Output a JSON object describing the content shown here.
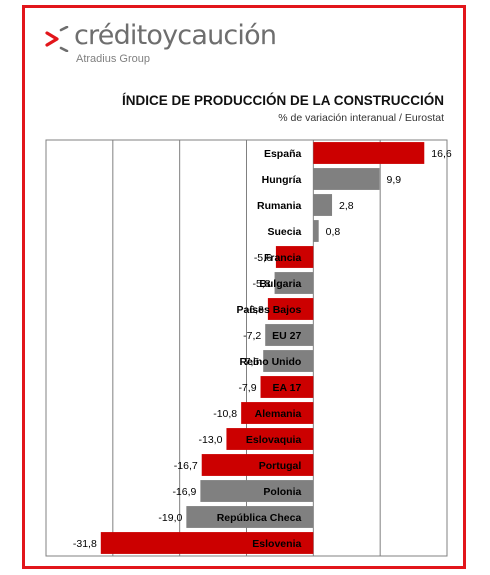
{
  "brand": {
    "name": "créditoycaución",
    "group": "Atradius Group"
  },
  "chart_data": {
    "type": "bar",
    "orientation": "horizontal",
    "title": "ÍNDICE DE PRODUCCIÓN DE LA CONSTRUCCIÓN",
    "subtitle": "% de variación interanual / Eurostat",
    "categories": [
      "España",
      "Hungría",
      "Rumania",
      "Suecia",
      "Francia",
      "Bulgaria",
      "Países Bajos",
      "EU 27",
      "Reino Unido",
      "EA 17",
      "Alemania",
      "Eslovaquia",
      "Portugal",
      "Polonia",
      "República Checa",
      "Eslovenia"
    ],
    "values": [
      16.6,
      9.9,
      2.8,
      0.8,
      -5.6,
      -5.8,
      -6.8,
      -7.2,
      -7.5,
      -7.9,
      -10.8,
      -13.0,
      -16.7,
      -16.9,
      -19.0,
      -31.8
    ],
    "value_labels": [
      "16,6",
      "9,9",
      "2,8",
      "0,8",
      "-5,6",
      "-5,8",
      "-6,8",
      "-7,2",
      "-7,5",
      "-7,9",
      "-10,8",
      "-13,0",
      "-16,7",
      "-16,9",
      "-19,0",
      "-31,8"
    ],
    "colors": [
      "#cc0000",
      "#808080",
      "#808080",
      "#808080",
      "#cc0000",
      "#808080",
      "#cc0000",
      "#808080",
      "#808080",
      "#cc0000",
      "#cc0000",
      "#cc0000",
      "#cc0000",
      "#808080",
      "#808080",
      "#cc0000"
    ],
    "xlim": [
      -40,
      20
    ],
    "grid": true,
    "legend": "none"
  },
  "colors": {
    "frame": "#e2161b",
    "brand_red": "#e2161b",
    "bar_red": "#cc0000",
    "bar_gray": "#808080",
    "grid": "#808080"
  }
}
